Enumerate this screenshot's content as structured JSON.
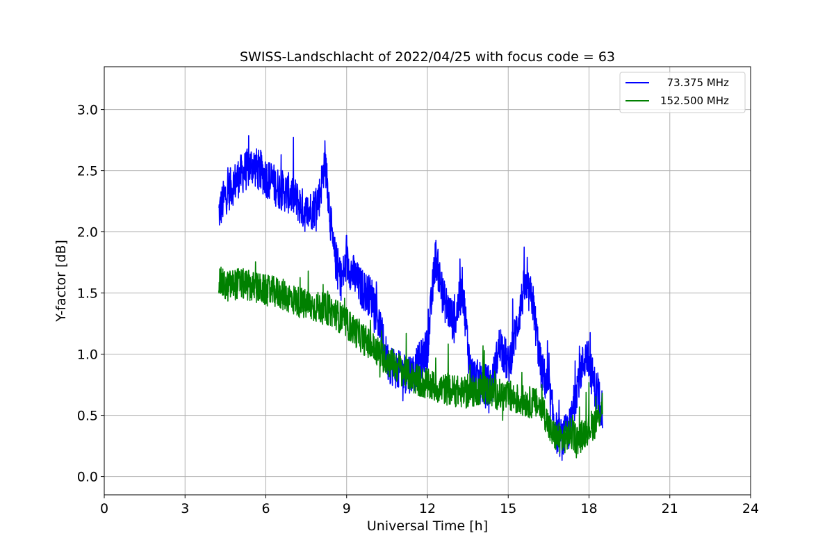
{
  "chart_data": {
    "type": "line",
    "title": "SWISS-Landschlacht of 2022/04/25 with focus code = 63",
    "xlabel": "Universal Time [h]",
    "ylabel": "Y-factor [dB]",
    "xlim": [
      0,
      24
    ],
    "ylim": [
      -0.15,
      3.35
    ],
    "xticks": [
      0,
      3,
      6,
      9,
      12,
      15,
      18,
      21,
      24
    ],
    "xtick_labels": [
      "0",
      "3",
      "6",
      "9",
      "12",
      "15",
      "18",
      "21",
      "24"
    ],
    "yticks": [
      0.0,
      0.5,
      1.0,
      1.5,
      2.0,
      2.5,
      3.0
    ],
    "ytick_labels": [
      "0.0",
      "0.5",
      "1.0",
      "1.5",
      "2.0",
      "2.5",
      "3.0"
    ],
    "grid": true,
    "legend_position": "top-right",
    "series": [
      {
        "name": "  73.375 MHz",
        "color": "#0000ff",
        "x": [
          4.25,
          4.5,
          5.0,
          5.5,
          6.0,
          6.5,
          7.0,
          7.5,
          7.8,
          8.0,
          8.2,
          8.5,
          8.8,
          9.0,
          9.5,
          10.0,
          10.5,
          11.0,
          11.5,
          12.0,
          12.3,
          12.6,
          13.0,
          13.3,
          13.6,
          14.0,
          14.4,
          14.7,
          15.0,
          15.3,
          15.6,
          15.9,
          16.2,
          16.5,
          16.8,
          17.0,
          17.3,
          17.6,
          17.9,
          18.2,
          18.5
        ],
        "y": [
          2.15,
          2.3,
          2.45,
          2.55,
          2.45,
          2.35,
          2.3,
          2.15,
          2.2,
          2.3,
          2.6,
          1.85,
          1.6,
          1.75,
          1.55,
          1.45,
          0.95,
          0.85,
          0.85,
          1.05,
          1.8,
          1.45,
          1.25,
          1.55,
          0.85,
          0.75,
          0.75,
          1.1,
          0.9,
          1.2,
          1.55,
          1.45,
          0.9,
          0.7,
          0.35,
          0.3,
          0.4,
          0.8,
          1.0,
          0.75,
          0.55
        ]
      },
      {
        "name": "152.500 MHz",
        "color": "#008000",
        "x": [
          4.25,
          4.5,
          5.0,
          5.5,
          6.0,
          6.5,
          7.0,
          7.5,
          8.0,
          8.5,
          9.0,
          9.5,
          10.0,
          10.5,
          11.0,
          11.5,
          12.0,
          12.5,
          13.0,
          13.5,
          14.0,
          14.5,
          15.0,
          15.5,
          16.0,
          16.3,
          16.6,
          17.0,
          17.3,
          17.6,
          18.0,
          18.3,
          18.5
        ],
        "y": [
          1.6,
          1.55,
          1.58,
          1.55,
          1.52,
          1.5,
          1.45,
          1.4,
          1.38,
          1.35,
          1.25,
          1.15,
          1.05,
          0.95,
          0.88,
          0.8,
          0.75,
          0.72,
          0.7,
          0.68,
          0.72,
          0.68,
          0.65,
          0.62,
          0.6,
          0.55,
          0.35,
          0.3,
          0.35,
          0.3,
          0.4,
          0.45,
          0.6
        ]
      }
    ]
  }
}
